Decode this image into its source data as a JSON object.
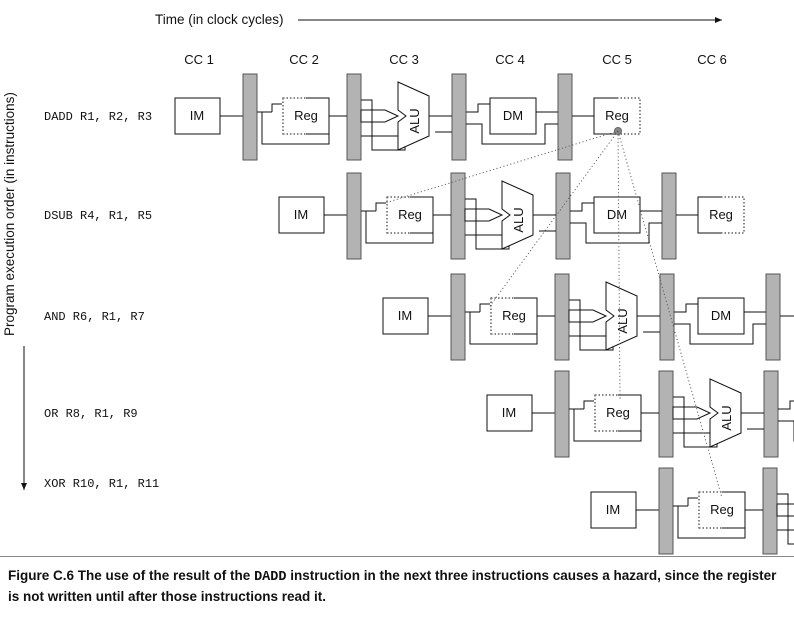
{
  "time_axis_label": "Time (in clock cycles)",
  "order_axis_label": "Program execution order (in instructions)",
  "clock_cycles": [
    "CC 1",
    "CC 2",
    "CC 3",
    "CC 4",
    "CC 5",
    "CC 6"
  ],
  "instructions": [
    "DADD R1, R2, R3",
    "DSUB R4, R1, R5",
    "AND R6, R1, R7",
    "OR R8, R1, R9",
    "XOR R10, R1, R11"
  ],
  "units": {
    "im": "IM",
    "reg": "Reg",
    "alu": "ALU",
    "dm": "DM"
  },
  "caption": {
    "figure_label": "Figure C.6",
    "text_before": "The use of the result of the",
    "code": "DADD",
    "text_after": "instruction in the next three instructions causes a hazard, since the register is not written until after those instructions read it."
  }
}
